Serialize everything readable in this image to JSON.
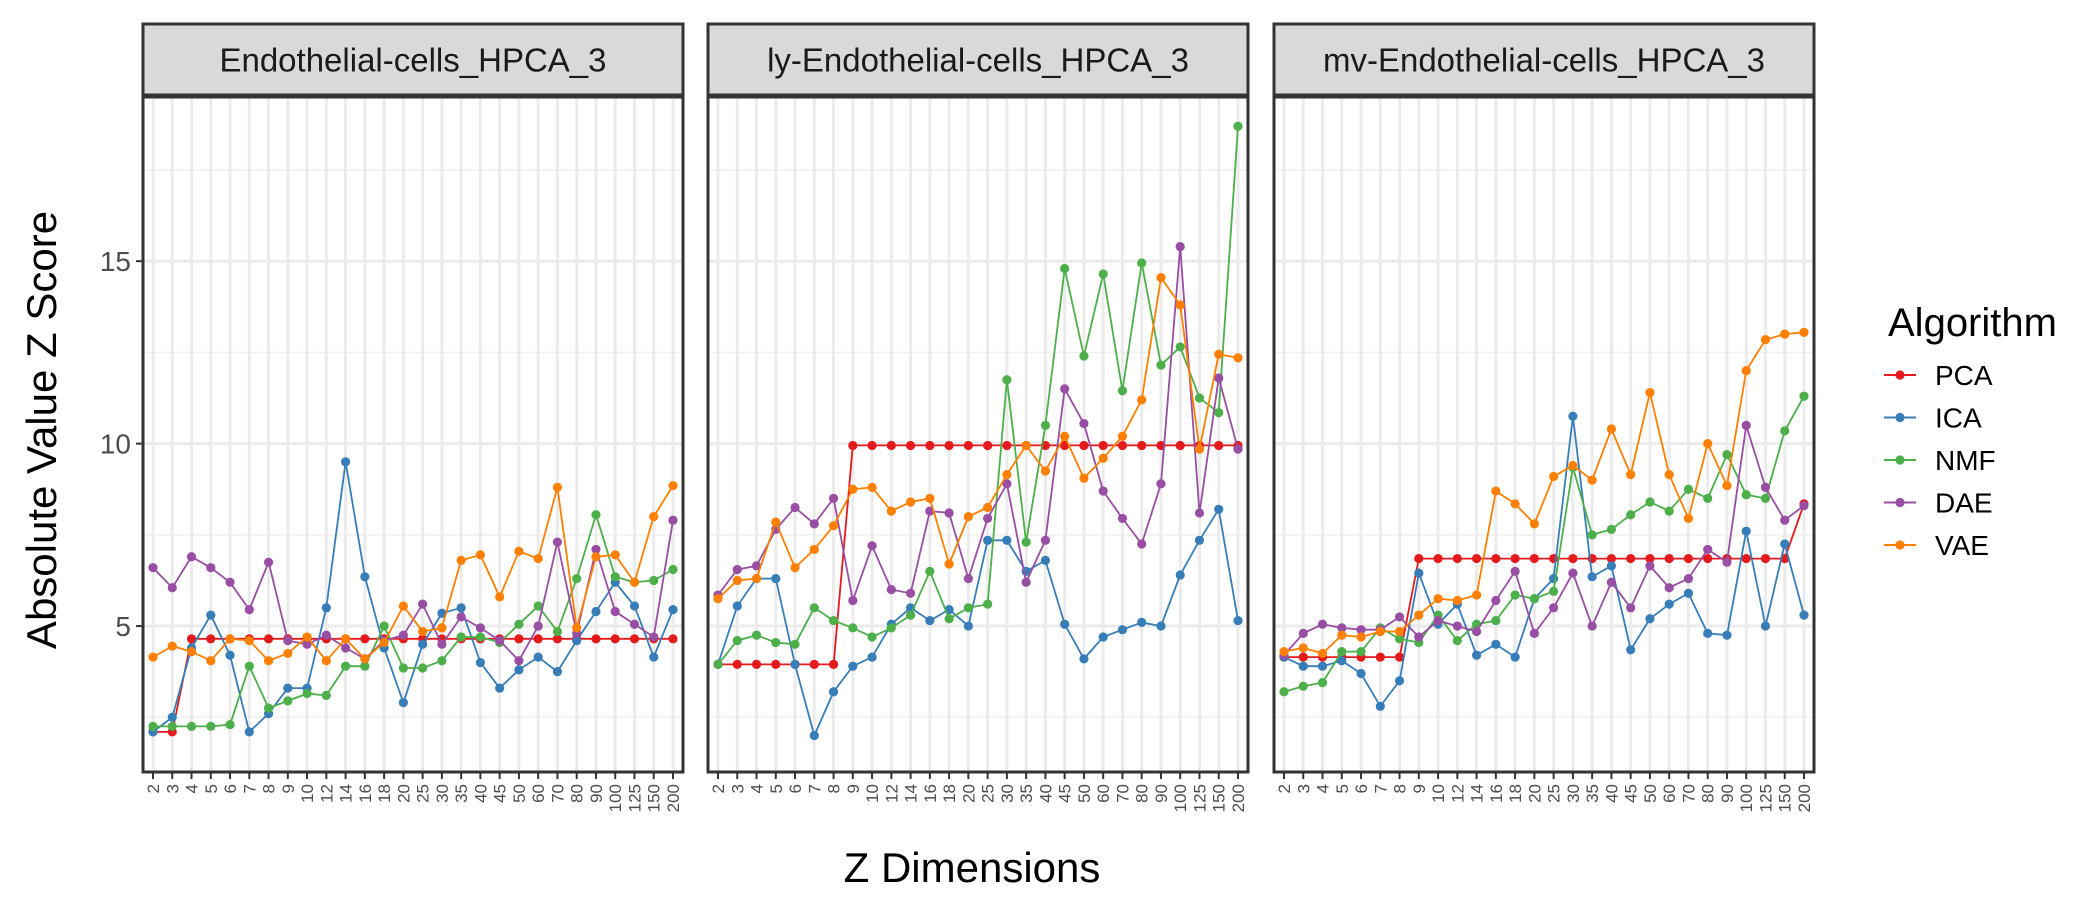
{
  "chart_data": {
    "type": "line",
    "ylabel": "Absolute Value Z Score",
    "xlabel": "Z Dimensions",
    "ylim": [
      1,
      19.5
    ],
    "yticks": [
      5,
      10,
      15
    ],
    "categories": [
      "2",
      "3",
      "4",
      "5",
      "6",
      "7",
      "8",
      "9",
      "10",
      "12",
      "14",
      "16",
      "18",
      "20",
      "25",
      "30",
      "35",
      "40",
      "45",
      "50",
      "60",
      "70",
      "80",
      "90",
      "100",
      "125",
      "150",
      "200"
    ],
    "legend": {
      "title": "Algorithm",
      "position": "right"
    },
    "grid": true,
    "colors": {
      "PCA": "#e41a1c",
      "ICA": "#377eb8",
      "NMF": "#4daf4a",
      "DAE": "#984ea3",
      "VAE": "#ff7f00"
    },
    "panels": [
      {
        "title": "Endothelial-cells_HPCA_3",
        "series": [
          {
            "name": "PCA",
            "values": [
              2.1,
              2.1,
              4.65,
              4.65,
              4.65,
              4.65,
              4.65,
              4.65,
              4.65,
              4.65,
              4.65,
              4.65,
              4.65,
              4.65,
              4.65,
              4.65,
              4.65,
              4.65,
              4.65,
              4.65,
              4.65,
              4.65,
              4.65,
              4.65,
              4.65,
              4.65,
              4.65,
              4.65
            ]
          },
          {
            "name": "ICA",
            "values": [
              2.1,
              2.5,
              4.4,
              5.3,
              4.2,
              2.1,
              2.6,
              3.3,
              3.3,
              5.5,
              9.5,
              6.35,
              4.4,
              2.9,
              4.5,
              5.35,
              5.5,
              4.0,
              3.3,
              3.8,
              4.15,
              3.75,
              4.6,
              5.4,
              6.2,
              5.55,
              4.15,
              5.45
            ]
          },
          {
            "name": "NMF",
            "values": [
              2.25,
              2.25,
              2.25,
              2.25,
              2.3,
              3.9,
              2.75,
              2.95,
              3.15,
              3.1,
              3.9,
              3.9,
              5.0,
              3.85,
              3.85,
              4.05,
              4.7,
              4.7,
              4.55,
              5.05,
              5.55,
              4.85,
              6.3,
              8.05,
              6.35,
              6.2,
              6.25,
              6.55
            ]
          },
          {
            "name": "DAE",
            "values": [
              6.6,
              6.05,
              6.9,
              6.6,
              6.2,
              5.45,
              6.75,
              4.6,
              4.5,
              4.75,
              4.4,
              4.1,
              4.6,
              4.75,
              5.6,
              4.5,
              5.25,
              4.95,
              4.6,
              4.05,
              5.0,
              7.3,
              4.8,
              7.1,
              5.4,
              5.05,
              4.7,
              7.9
            ]
          },
          {
            "name": "VAE",
            "values": [
              4.15,
              4.45,
              4.3,
              4.05,
              4.65,
              4.6,
              4.05,
              4.25,
              4.7,
              4.05,
              4.65,
              4.1,
              4.55,
              5.55,
              4.85,
              4.95,
              6.8,
              6.95,
              5.8,
              7.05,
              6.85,
              8.8,
              4.95,
              6.9,
              6.95,
              6.2,
              8.0,
              8.85
            ]
          }
        ]
      },
      {
        "title": "ly-Endothelial-cells_HPCA_3",
        "series": [
          {
            "name": "PCA",
            "values": [
              3.95,
              3.95,
              3.95,
              3.95,
              3.95,
              3.95,
              3.95,
              9.95,
              9.95,
              9.95,
              9.95,
              9.95,
              9.95,
              9.95,
              9.95,
              9.95,
              9.95,
              9.95,
              9.95,
              9.95,
              9.95,
              9.95,
              9.95,
              9.95,
              9.95,
              9.95,
              9.95,
              9.95
            ]
          },
          {
            "name": "ICA",
            "values": [
              3.95,
              5.55,
              6.3,
              6.3,
              3.95,
              2.0,
              3.2,
              3.9,
              4.15,
              5.05,
              5.5,
              5.15,
              5.45,
              5.0,
              7.35,
              7.35,
              6.5,
              6.8,
              5.05,
              4.1,
              4.7,
              4.9,
              5.1,
              5.0,
              6.4,
              7.35,
              8.2,
              5.15
            ]
          },
          {
            "name": "NMF",
            "values": [
              3.95,
              4.6,
              4.75,
              4.55,
              4.5,
              5.5,
              5.15,
              4.95,
              4.7,
              4.95,
              5.3,
              6.5,
              5.2,
              5.5,
              5.6,
              11.75,
              7.3,
              10.5,
              14.8,
              12.4,
              14.65,
              11.45,
              14.95,
              12.15,
              12.65,
              11.25,
              10.85,
              18.7
            ]
          },
          {
            "name": "DAE",
            "values": [
              5.85,
              6.55,
              6.65,
              7.65,
              8.25,
              7.8,
              8.5,
              5.7,
              7.2,
              6.0,
              5.9,
              8.15,
              8.1,
              6.3,
              7.95,
              8.9,
              6.2,
              7.35,
              11.5,
              10.55,
              8.7,
              7.95,
              7.25,
              8.9,
              15.4,
              8.1,
              11.8,
              9.85
            ]
          },
          {
            "name": "VAE",
            "values": [
              5.75,
              6.25,
              6.3,
              7.85,
              6.6,
              7.1,
              7.75,
              8.75,
              8.8,
              8.15,
              8.4,
              8.5,
              6.7,
              8.0,
              8.25,
              9.15,
              9.95,
              9.25,
              10.2,
              9.05,
              9.6,
              10.2,
              11.2,
              14.55,
              13.8,
              9.85,
              12.45,
              12.35
            ]
          }
        ]
      },
      {
        "title": "mv-Endothelial-cells_HPCA_3",
        "series": [
          {
            "name": "PCA",
            "values": [
              4.15,
              4.15,
              4.15,
              4.15,
              4.15,
              4.15,
              4.15,
              6.85,
              6.85,
              6.85,
              6.85,
              6.85,
              6.85,
              6.85,
              6.85,
              6.85,
              6.85,
              6.85,
              6.85,
              6.85,
              6.85,
              6.85,
              6.85,
              6.85,
              6.85,
              6.85,
              6.85,
              8.35
            ]
          },
          {
            "name": "ICA",
            "values": [
              4.15,
              3.9,
              3.9,
              4.05,
              3.7,
              2.8,
              3.5,
              6.45,
              5.05,
              5.6,
              4.2,
              4.5,
              4.15,
              5.75,
              6.3,
              10.75,
              6.35,
              6.65,
              4.35,
              5.2,
              5.6,
              5.9,
              4.8,
              4.75,
              7.6,
              5.0,
              7.25,
              5.3
            ]
          },
          {
            "name": "NMF",
            "values": [
              3.2,
              3.35,
              3.45,
              4.3,
              4.3,
              4.95,
              4.65,
              4.55,
              5.3,
              4.6,
              5.05,
              5.15,
              5.85,
              5.75,
              5.95,
              9.35,
              7.5,
              7.65,
              8.05,
              8.4,
              8.15,
              8.75,
              8.5,
              9.7,
              8.6,
              8.5,
              10.35,
              11.3
            ]
          },
          {
            "name": "DAE",
            "values": [
              4.2,
              4.8,
              5.05,
              4.95,
              4.9,
              4.9,
              5.25,
              4.7,
              5.15,
              5.0,
              4.85,
              5.7,
              6.5,
              4.8,
              5.5,
              6.45,
              5.0,
              6.2,
              5.5,
              6.65,
              6.05,
              6.3,
              7.1,
              6.75,
              10.5,
              8.8,
              7.9,
              8.3
            ]
          },
          {
            "name": "VAE",
            "values": [
              4.3,
              4.4,
              4.25,
              4.75,
              4.7,
              4.85,
              4.85,
              5.3,
              5.75,
              5.7,
              5.85,
              8.7,
              8.35,
              7.8,
              9.1,
              9.4,
              9.0,
              10.4,
              9.15,
              11.4,
              9.15,
              7.95,
              10.0,
              8.85,
              12.0,
              12.85,
              13.0,
              13.05
            ]
          }
        ]
      }
    ]
  }
}
